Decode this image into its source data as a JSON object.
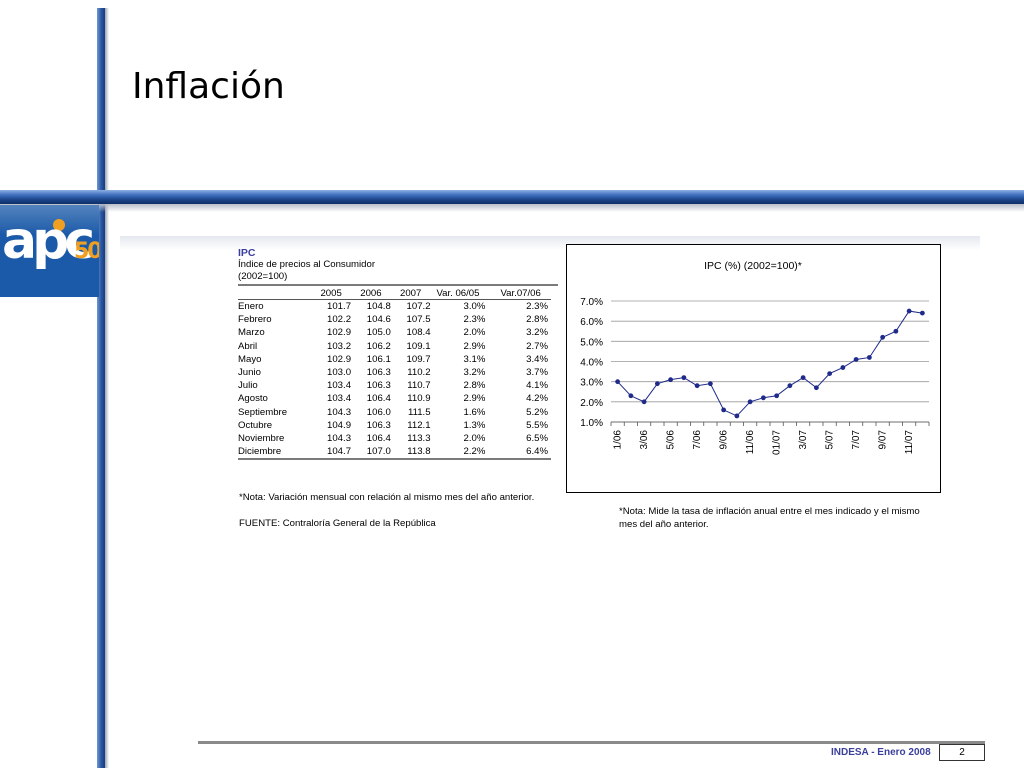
{
  "slide": {
    "title": "Inflación",
    "logo_text": "apc",
    "logo_number": "50"
  },
  "table": {
    "heading": "IPC",
    "subtitle": "Índice de precios al Consumidor",
    "base": "(2002=100)",
    "columns": [
      "",
      "2005",
      "2006",
      "2007",
      "Var. 06/05",
      "Var.07/06"
    ],
    "rows": [
      [
        "Enero",
        "101.7",
        "104.8",
        "107.2",
        "3.0%",
        "2.3%"
      ],
      [
        "Febrero",
        "102.2",
        "104.6",
        "107.5",
        "2.3%",
        "2.8%"
      ],
      [
        "Marzo",
        "102.9",
        "105.0",
        "108.4",
        "2.0%",
        "3.2%"
      ],
      [
        "Abril",
        "103.2",
        "106.2",
        "109.1",
        "2.9%",
        "2.7%"
      ],
      [
        "Mayo",
        "102.9",
        "106.1",
        "109.7",
        "3.1%",
        "3.4%"
      ],
      [
        "Junio",
        "103.0",
        "106.3",
        "110.2",
        "3.2%",
        "3.7%"
      ],
      [
        "Julio",
        "103.4",
        "106.3",
        "110.7",
        "2.8%",
        "4.1%"
      ],
      [
        "Agosto",
        "103.4",
        "106.4",
        "110.9",
        "2.9%",
        "4.2%"
      ],
      [
        "Septiembre",
        "104.3",
        "106.0",
        "111.5",
        "1.6%",
        "5.2%"
      ],
      [
        "Octubre",
        "104.9",
        "106.3",
        "112.1",
        "1.3%",
        "5.5%"
      ],
      [
        "Noviembre",
        "104.3",
        "106.4",
        "113.3",
        "2.0%",
        "6.5%"
      ],
      [
        "Diciembre",
        "104.7",
        "107.0",
        "113.8",
        "2.2%",
        "6.4%"
      ]
    ],
    "note": "*Nota: Variación mensual con relación al mismo mes del año anterior.",
    "source": "FUENTE: Contraloría General de la República"
  },
  "chart_note": "*Nota: Mide la tasa de inflación anual entre el mes indicado y el mismo mes del año anterior.",
  "chart_data": {
    "type": "line",
    "title": "IPC (%) (2002=100)*",
    "xlabel": "",
    "ylabel": "",
    "x": [
      "1/06",
      "2/06",
      "3/06",
      "4/06",
      "5/06",
      "6/06",
      "7/06",
      "8/06",
      "9/06",
      "10/06",
      "11/06",
      "12/06",
      "01/07",
      "2/07",
      "3/07",
      "4/07",
      "5/07",
      "6/07",
      "7/07",
      "8/07",
      "9/07",
      "10/07",
      "11/07",
      "12/07"
    ],
    "x_tick_labels": [
      "1/06",
      "3/06",
      "5/06",
      "7/06",
      "9/06",
      "11/06",
      "01/07",
      "3/07",
      "5/07",
      "7/07",
      "9/07",
      "11/07"
    ],
    "series": [
      {
        "values": [
          3.0,
          2.3,
          2.0,
          2.9,
          3.1,
          3.2,
          2.8,
          2.9,
          1.6,
          1.3,
          2.0,
          2.2,
          2.3,
          2.8,
          3.2,
          2.7,
          3.4,
          3.7,
          4.1,
          4.2,
          5.2,
          5.5,
          6.5,
          6.4
        ],
        "color": "#1f2a8a"
      }
    ],
    "y_ticks": [
      "7.0%",
      "6.0%",
      "5.0%",
      "4.0%",
      "3.0%",
      "2.0%",
      "1.0%"
    ],
    "ylim": [
      1.0,
      7.0
    ],
    "grid": true,
    "legend": "none"
  },
  "footer": {
    "text": "INDESA - Enero 2008",
    "page": "2"
  }
}
